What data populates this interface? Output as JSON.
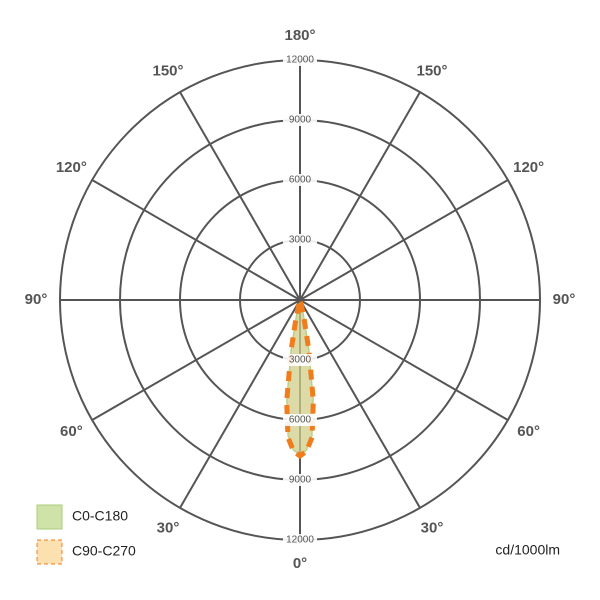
{
  "chart_data": {
    "type": "polar",
    "unit_label": "cd/1000lm",
    "rlim": [
      0,
      12000
    ],
    "rticks": [
      3000,
      6000,
      9000,
      12000
    ],
    "thetaticks": [
      {
        "value": 0,
        "label": "0°"
      },
      {
        "value": 30,
        "label": "30°"
      },
      {
        "value": 60,
        "label": "60°"
      },
      {
        "value": 90,
        "label": "90°"
      },
      {
        "value": 120,
        "label": "120°"
      },
      {
        "value": 150,
        "label": "150°"
      },
      {
        "value": 180,
        "label": "180°"
      }
    ],
    "series": [
      {
        "name": "C0-C180",
        "color": "#a9cd7e",
        "x": [
          -15,
          -12.5,
          -10,
          -7.5,
          -5,
          -2.5,
          0,
          2.5,
          5,
          7.5,
          10,
          12.5,
          15
        ],
        "values": [
          200,
          800,
          2500,
          5000,
          6800,
          7500,
          7750,
          7500,
          6800,
          5000,
          2500,
          800,
          200
        ]
      },
      {
        "name": "C90-C270",
        "color": "#f07c1c",
        "x": [
          -15,
          -12.5,
          -10,
          -7.5,
          -5,
          -2.5,
          0,
          2.5,
          5,
          7.5,
          10,
          12.5,
          15
        ],
        "values": [
          200,
          900,
          2600,
          5100,
          6900,
          7550,
          7800,
          7550,
          6900,
          5100,
          2600,
          900,
          200
        ]
      }
    ]
  }
}
